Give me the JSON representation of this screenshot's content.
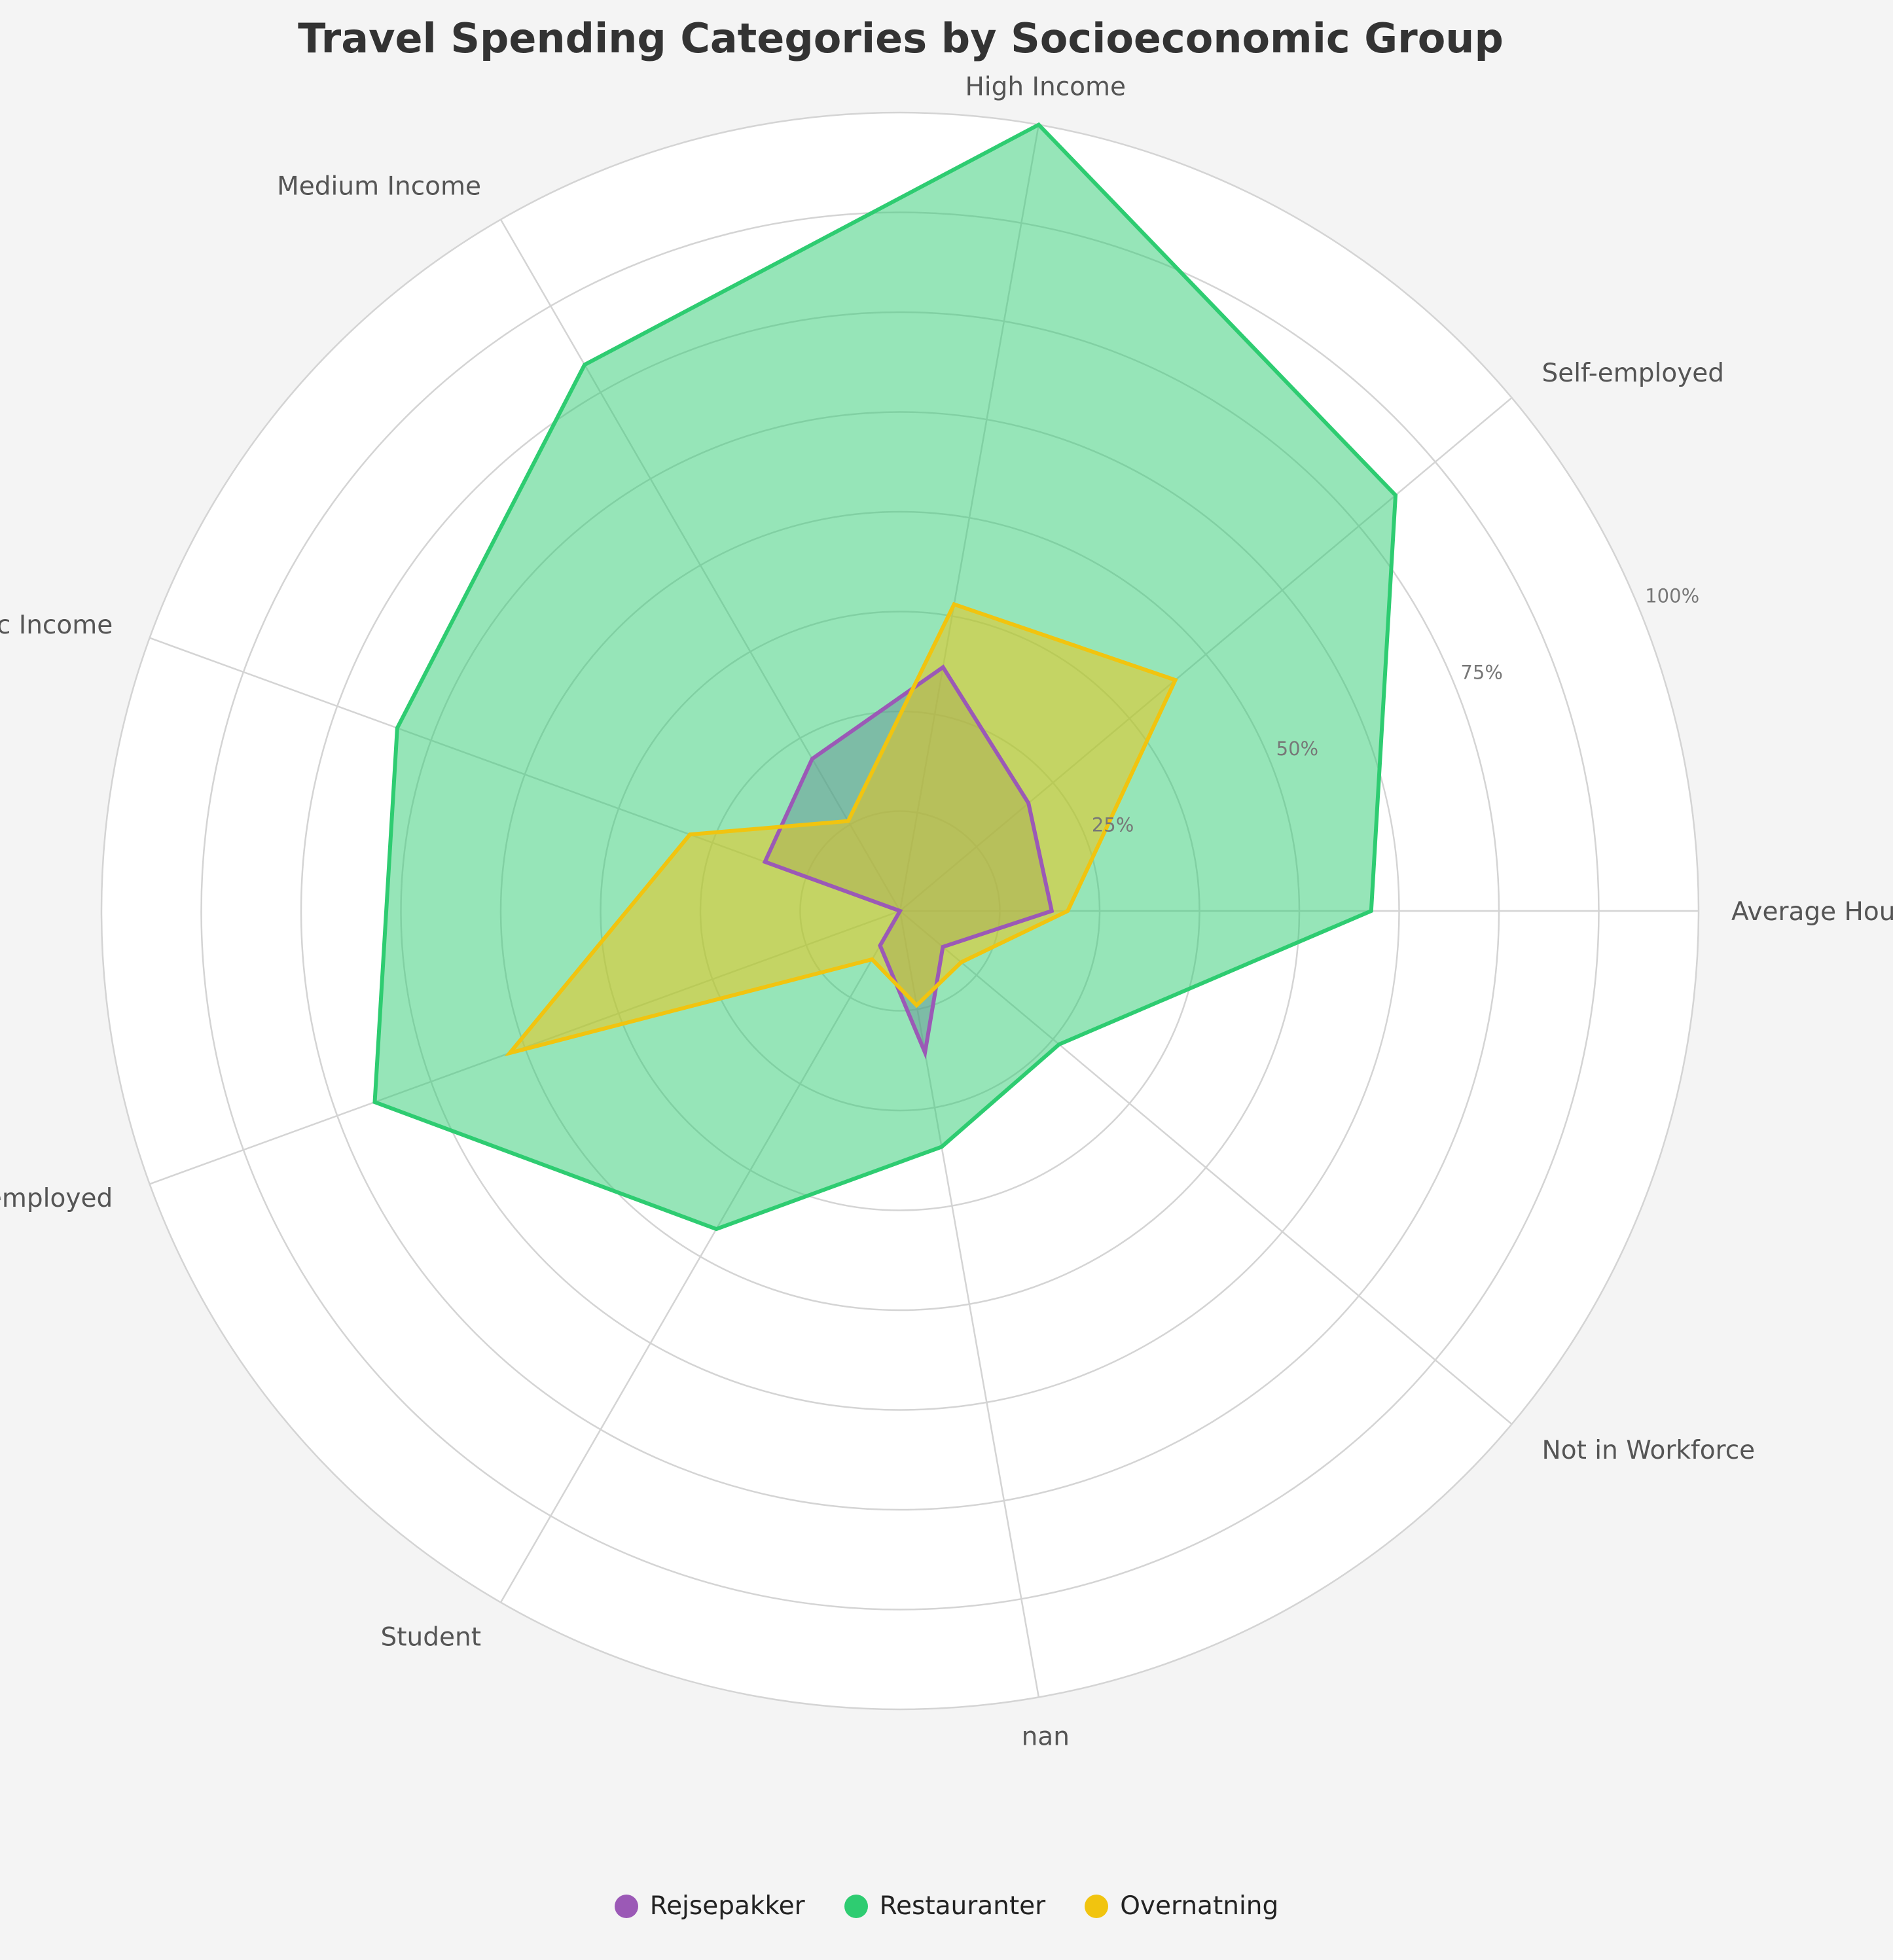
{
  "chart_data": {
    "type": "radar",
    "title": "Travel Spending Categories by Socioeconomic Group",
    "categories": [
      "Average Household",
      "Self-employed",
      "High Income",
      "Medium Income",
      "Basic Income",
      "Unemployed",
      "Student",
      "nan",
      "Not in Workforce"
    ],
    "series": [
      {
        "name": "Rejsepakker",
        "values": [
          19,
          21,
          31,
          22,
          18,
          0,
          5,
          18,
          7
        ],
        "color": "#9b59b6"
      },
      {
        "name": "Restauranter",
        "values": [
          59,
          81,
          100,
          79,
          67,
          70,
          46,
          30,
          26
        ],
        "color": "#2ecc71"
      },
      {
        "name": "Overnatning",
        "values": [
          21,
          45,
          39,
          13,
          28,
          52,
          7,
          12,
          10
        ],
        "color": "#f1c40f"
      }
    ],
    "rlim": [
      0,
      100
    ],
    "r_ticks": [
      "25%",
      "50%",
      "75%",
      "100%"
    ],
    "grid": true,
    "legend_position": "bottom"
  }
}
